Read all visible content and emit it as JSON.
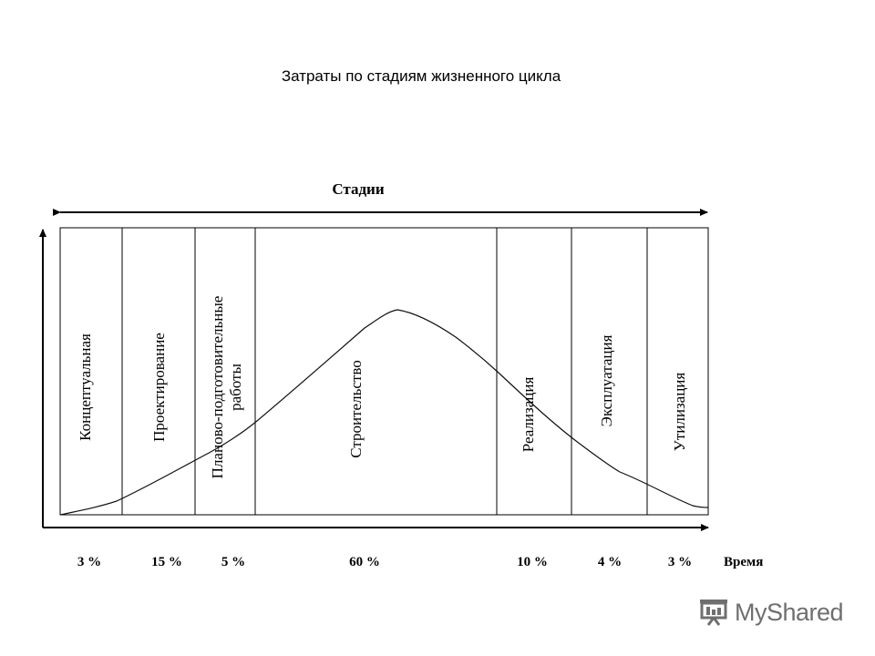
{
  "title": "Затраты по стадиям жизненного цикла",
  "diagram": {
    "stages_header": "Стадии",
    "time_label": "Время",
    "stages": [
      {
        "name": "Концептуальная",
        "percent": "3 %"
      },
      {
        "name": "Проектирование",
        "percent": "15 %"
      },
      {
        "name": "Планово-подготовительные",
        "name_line2": "работы",
        "percent": "5 %"
      },
      {
        "name": "Строительство",
        "percent": "60 %"
      },
      {
        "name": "Реализация",
        "percent": "10 %"
      },
      {
        "name": "Эксплуатация",
        "percent": "4 %"
      },
      {
        "name": "Утилизация",
        "percent": "3 %"
      }
    ]
  },
  "watermark": {
    "text": "MyShared",
    "icon": "presentation-board-icon"
  }
}
